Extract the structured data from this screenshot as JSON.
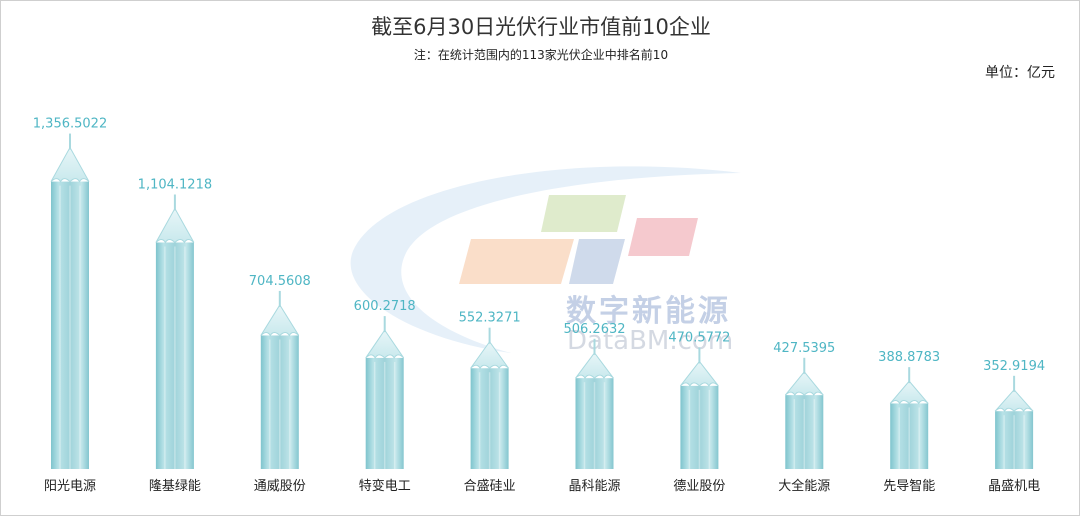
{
  "chart_data": {
    "type": "bar",
    "title": "截至6月30日光伏行业市值前10企业",
    "subtitle": "注：在统计范围内的113家光伏企业中排名前10",
    "unit": "单位：亿元",
    "categories": [
      "阳光电源",
      "隆基绿能",
      "通威股份",
      "特变电工",
      "合盛硅业",
      "晶科能源",
      "德业股份",
      "大全能源",
      "先导智能",
      "晶盛机电"
    ],
    "values": [
      1356.5022,
      1104.1218,
      704.5608,
      600.2718,
      552.3271,
      506.2632,
      470.5772,
      427.5395,
      388.8783,
      352.9194
    ],
    "value_labels": [
      "1,356.5022",
      "1,104.1218",
      "704.5608",
      "600.2718",
      "552.3271",
      "506.2632",
      "470.5772",
      "427.5395",
      "388.8783",
      "352.9194"
    ],
    "ylim": [
      0,
      1450
    ],
    "bar_color": "#9fd3da",
    "label_color": "#4fb6c4"
  },
  "watermark": {
    "brand_cn": "数字新能源",
    "brand_en": "DataBM.com"
  }
}
